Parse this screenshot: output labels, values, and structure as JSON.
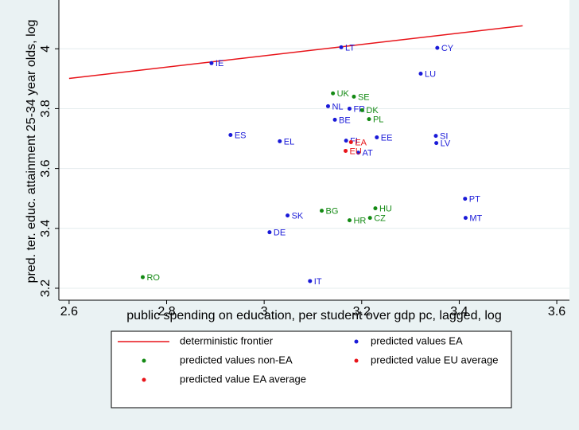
{
  "chart_data": {
    "type": "scatter",
    "xlabel": "public spending on education, per student over gdp pc, lagged, log",
    "ylabel": "pred. ter. educ. attainment 25-34 year olds, log",
    "xlim": [
      2.579,
      3.626
    ],
    "ylim": [
      3.16,
      4.163
    ],
    "xticks": [
      2.6,
      2.8,
      3,
      3.2,
      3.4,
      3.6
    ],
    "yticks": [
      3.2,
      3.4,
      3.6,
      3.8,
      4
    ],
    "grid": true,
    "series": [
      {
        "name": "deterministic frontier",
        "type": "line",
        "color": "#e8141a",
        "x": [
          2.6,
          3.53
        ],
        "y": [
          3.901,
          4.077
        ]
      },
      {
        "name": "predicted values EA",
        "type": "scatter",
        "color": "#1a1ad8",
        "labels": [
          "IE",
          "LT",
          "CY",
          "LU",
          "NL",
          "FR",
          "BE",
          "ES",
          "EL",
          "FI",
          "AT",
          "EE",
          "SI",
          "LV",
          "PT",
          "MT",
          "SK",
          "DE",
          "IT"
        ],
        "x": [
          2.892,
          3.158,
          3.355,
          3.321,
          3.131,
          3.175,
          3.145,
          2.931,
          3.032,
          3.168,
          3.193,
          3.231,
          3.352,
          3.353,
          3.412,
          3.413,
          3.048,
          3.011,
          3.094
        ],
        "y": [
          3.952,
          4.005,
          4.003,
          3.917,
          3.808,
          3.8,
          3.763,
          3.712,
          3.691,
          3.693,
          3.653,
          3.704,
          3.709,
          3.685,
          3.499,
          3.435,
          3.443,
          3.387,
          3.224
        ]
      },
      {
        "name": "predicted values non-EA",
        "type": "scatter",
        "color": "#148a14",
        "labels": [
          "UK",
          "SE",
          "DK",
          "PL",
          "BG",
          "HU",
          "HR",
          "CZ",
          "RO"
        ],
        "x": [
          3.141,
          3.184,
          3.201,
          3.215,
          3.118,
          3.228,
          3.175,
          3.217,
          2.751
        ],
        "y": [
          3.851,
          3.84,
          3.795,
          3.765,
          3.459,
          3.467,
          3.427,
          3.435,
          3.237
        ]
      },
      {
        "name": "predicted value EU average",
        "type": "scatter",
        "color": "#e8141a",
        "labels": [
          "EU"
        ],
        "x": [
          3.167
        ],
        "y": [
          3.659
        ]
      },
      {
        "name": "predicted value EA average",
        "type": "scatter",
        "color": "#e8141a",
        "labels": [
          "EA"
        ],
        "x": [
          3.178
        ],
        "y": [
          3.688
        ]
      }
    ]
  }
}
